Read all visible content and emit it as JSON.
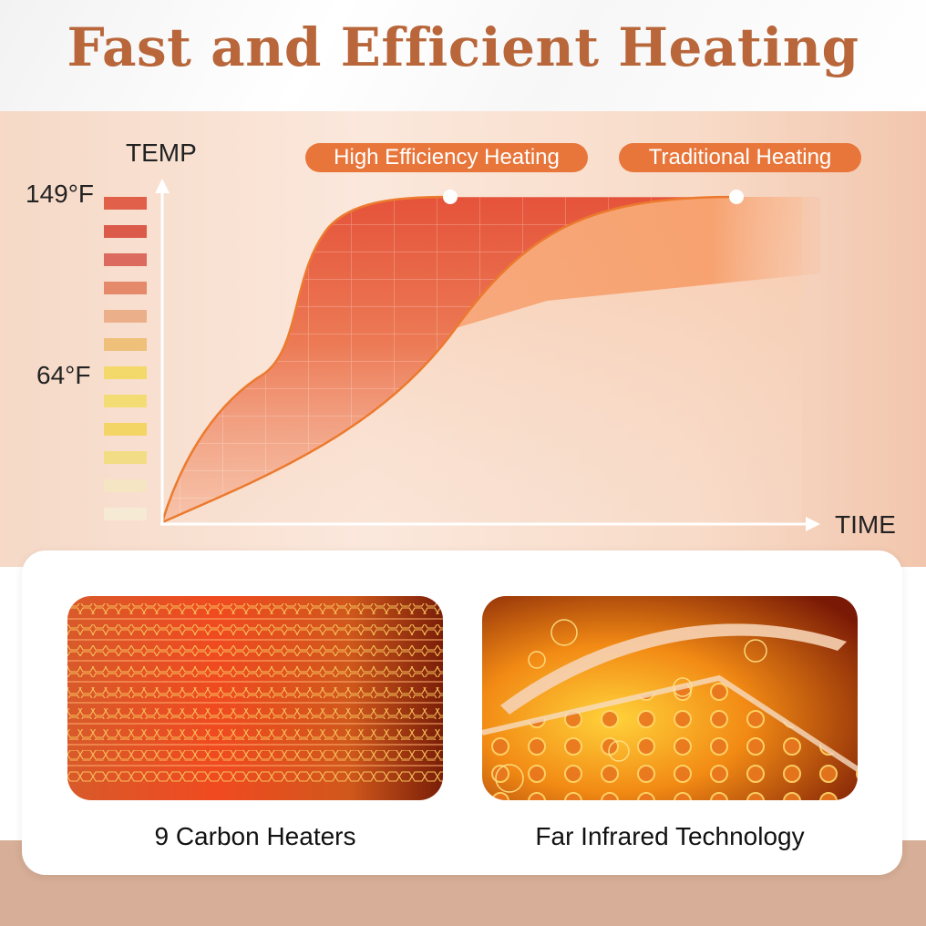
{
  "header": {
    "title": "Fast and Efficient Heating"
  },
  "chart": {
    "y_axis_label": "TEMP",
    "x_axis_label": "TIME",
    "y_max_label": "149°F",
    "y_mid_label": "64°F",
    "legend": [
      {
        "label": "High Efficiency Heating",
        "color": "#e8763a"
      },
      {
        "label": "Traditional Heating",
        "color": "#e8763a"
      }
    ],
    "scale_colors": [
      "#e0604a",
      "#dc5a4a",
      "#dc6a5e",
      "#e4896a",
      "#ebb08a",
      "#eec07a",
      "#f3d86a",
      "#f4dc74",
      "#f3d566",
      "#f3dd84",
      "#f6e5c2",
      "#f7ead4"
    ]
  },
  "features": [
    {
      "caption": "9 Carbon Heaters",
      "icon": "carbon-heater-strips"
    },
    {
      "caption": "Far Infrared Technology",
      "icon": "far-infrared-layers"
    }
  ],
  "colors": {
    "title": "#b8663a",
    "accent": "#e8763a",
    "bottom_band": "#d7ae97"
  }
}
